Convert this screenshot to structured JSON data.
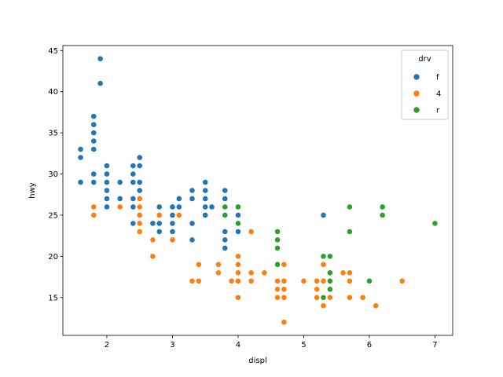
{
  "chart_data": {
    "type": "scatter",
    "title": "",
    "xlabel": "displ",
    "ylabel": "hwy",
    "xlim": [
      1.33,
      7.27
    ],
    "ylim": [
      10.4,
      45.6
    ],
    "xticks": [
      2,
      3,
      4,
      5,
      6,
      7
    ],
    "yticks": [
      15,
      20,
      25,
      30,
      35,
      40,
      45
    ],
    "grid": false,
    "legend": {
      "title": "drv",
      "position": "upper right"
    },
    "series": [
      {
        "name": "f",
        "color": "#1f77b4",
        "points": [
          [
            1.6,
            33
          ],
          [
            1.6,
            32
          ],
          [
            1.6,
            29
          ],
          [
            1.8,
            37
          ],
          [
            1.8,
            36
          ],
          [
            1.8,
            35
          ],
          [
            1.8,
            34
          ],
          [
            1.8,
            33
          ],
          [
            1.8,
            30
          ],
          [
            1.8,
            29
          ],
          [
            1.9,
            44
          ],
          [
            1.9,
            41
          ],
          [
            2.0,
            31
          ],
          [
            2.0,
            30
          ],
          [
            2.0,
            29
          ],
          [
            2.0,
            28
          ],
          [
            2.0,
            27
          ],
          [
            2.0,
            26
          ],
          [
            2.2,
            29
          ],
          [
            2.2,
            27
          ],
          [
            2.4,
            31
          ],
          [
            2.4,
            30
          ],
          [
            2.4,
            29
          ],
          [
            2.4,
            27
          ],
          [
            2.4,
            26
          ],
          [
            2.4,
            24
          ],
          [
            2.5,
            32
          ],
          [
            2.5,
            31
          ],
          [
            2.5,
            29
          ],
          [
            2.5,
            28
          ],
          [
            2.5,
            27
          ],
          [
            2.5,
            26
          ],
          [
            2.5,
            25
          ],
          [
            2.5,
            24
          ],
          [
            2.7,
            24
          ],
          [
            2.8,
            26
          ],
          [
            2.8,
            24
          ],
          [
            2.8,
            23
          ],
          [
            3.0,
            26
          ],
          [
            3.0,
            25
          ],
          [
            3.0,
            24
          ],
          [
            3.0,
            23
          ],
          [
            3.1,
            27
          ],
          [
            3.1,
            26
          ],
          [
            3.3,
            28
          ],
          [
            3.3,
            27
          ],
          [
            3.3,
            24
          ],
          [
            3.3,
            22
          ],
          [
            3.5,
            29
          ],
          [
            3.5,
            28
          ],
          [
            3.5,
            27
          ],
          [
            3.5,
            26
          ],
          [
            3.5,
            25
          ],
          [
            3.6,
            26
          ],
          [
            3.8,
            28
          ],
          [
            3.8,
            27
          ],
          [
            3.8,
            26
          ],
          [
            3.8,
            23
          ],
          [
            3.8,
            22
          ],
          [
            3.8,
            21
          ],
          [
            4.0,
            25
          ],
          [
            4.0,
            23
          ],
          [
            5.3,
            25
          ]
        ]
      },
      {
        "name": "4",
        "color": "#ff7f0e",
        "points": [
          [
            1.8,
            26
          ],
          [
            1.8,
            25
          ],
          [
            2.2,
            26
          ],
          [
            2.5,
            27
          ],
          [
            2.5,
            26
          ],
          [
            2.5,
            25
          ],
          [
            2.5,
            24
          ],
          [
            2.5,
            23
          ],
          [
            2.7,
            22
          ],
          [
            2.7,
            20
          ],
          [
            2.8,
            25
          ],
          [
            3.0,
            22
          ],
          [
            3.1,
            25
          ],
          [
            3.3,
            17
          ],
          [
            3.4,
            19
          ],
          [
            3.4,
            17
          ],
          [
            3.7,
            19
          ],
          [
            3.7,
            18
          ],
          [
            3.9,
            17
          ],
          [
            4.0,
            20
          ],
          [
            4.0,
            19
          ],
          [
            4.0,
            18
          ],
          [
            4.0,
            17
          ],
          [
            4.0,
            15
          ],
          [
            4.2,
            23
          ],
          [
            4.2,
            18
          ],
          [
            4.2,
            17
          ],
          [
            4.4,
            18
          ],
          [
            4.6,
            19
          ],
          [
            4.6,
            17
          ],
          [
            4.6,
            16
          ],
          [
            4.6,
            15
          ],
          [
            4.7,
            19
          ],
          [
            4.7,
            17
          ],
          [
            4.7,
            16
          ],
          [
            4.7,
            15
          ],
          [
            4.7,
            12
          ],
          [
            5.0,
            17
          ],
          [
            5.2,
            17
          ],
          [
            5.2,
            16
          ],
          [
            5.2,
            15
          ],
          [
            5.3,
            19
          ],
          [
            5.3,
            17
          ],
          [
            5.3,
            15
          ],
          [
            5.3,
            14
          ],
          [
            5.4,
            17
          ],
          [
            5.4,
            15
          ],
          [
            5.6,
            18
          ],
          [
            5.7,
            18
          ],
          [
            5.7,
            17
          ],
          [
            5.7,
            15
          ],
          [
            5.9,
            15
          ],
          [
            6.1,
            14
          ],
          [
            6.5,
            17
          ]
        ]
      },
      {
        "name": "r",
        "color": "#2ca02c",
        "points": [
          [
            3.8,
            26
          ],
          [
            3.8,
            25
          ],
          [
            4.0,
            26
          ],
          [
            4.0,
            24
          ],
          [
            4.6,
            23
          ],
          [
            4.6,
            22
          ],
          [
            4.6,
            21
          ],
          [
            4.6,
            19
          ],
          [
            5.3,
            20
          ],
          [
            5.3,
            15
          ],
          [
            5.4,
            20
          ],
          [
            5.4,
            18
          ],
          [
            5.4,
            17
          ],
          [
            5.4,
            16
          ],
          [
            5.7,
            26
          ],
          [
            5.7,
            23
          ],
          [
            6.0,
            17
          ],
          [
            6.2,
            26
          ],
          [
            6.2,
            25
          ],
          [
            7.0,
            24
          ]
        ]
      }
    ]
  }
}
